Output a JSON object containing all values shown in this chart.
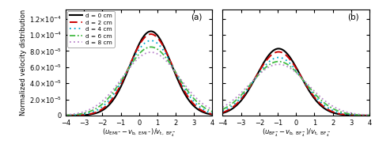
{
  "title_a": "(a)",
  "title_b": "(b)",
  "ylabel": "Normalized velocity distribution",
  "xlabel_a": "$(u_{\\mathrm{EMI}^-}\\!-\\!v_{\\mathrm{b,\\ EMI}^-})/v_{\\mathrm{t,\\ BF_4^-}}$",
  "xlabel_b": "$(u_{\\mathrm{BF_4^-}}\\!-\\!v_{\\mathrm{b,\\ BF_4^-}})/v_{\\mathrm{t,\\ BF_4^-}}$",
  "xlim": [
    -4,
    4
  ],
  "ylim": [
    0,
    0.000132
  ],
  "yticks": [
    0,
    2e-05,
    4e-05,
    6e-05,
    8e-05,
    0.0001,
    0.00012
  ],
  "legend_labels": [
    "d = 0 cm",
    "d = 2 cm",
    "d = 4 cm",
    "d = 6 cm",
    "d = 8 cm"
  ],
  "colors": [
    "#000000",
    "#cc0000",
    "#00aacc",
    "#44bb44",
    "#bb88cc"
  ],
  "panel_a": {
    "centers": [
      0.65,
      0.65,
      0.65,
      0.65,
      0.65
    ],
    "peaks": [
      0.0001045,
      0.000101,
      9.3e-05,
      8.5e-05,
      7.85e-05
    ],
    "widths": [
      1.12,
      1.18,
      1.28,
      1.4,
      1.54
    ]
  },
  "panel_b": {
    "centers": [
      -0.95,
      -0.95,
      -0.95,
      -0.95,
      -0.95
    ],
    "peaks": [
      8.3e-05,
      7.9e-05,
      7.2e-05,
      6.7e-05,
      6.35e-05
    ],
    "widths": [
      1.18,
      1.24,
      1.34,
      1.46,
      1.6
    ]
  }
}
